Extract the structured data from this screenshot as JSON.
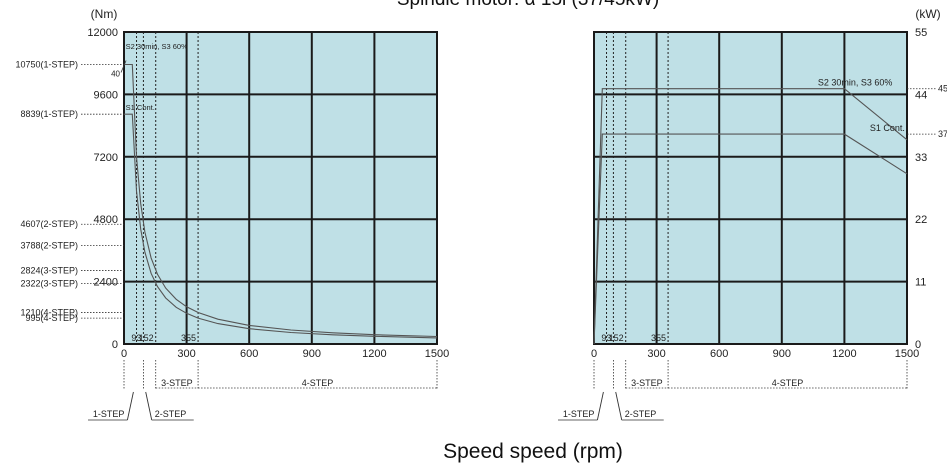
{
  "title": "Spindle motor: α 15i (37/45kW)",
  "x_axis_title": "Speed speed (rpm)",
  "colors": {
    "plot_bg": "#bfe0e6",
    "grid": "#1a1a1a",
    "curve": "#555555",
    "guide": "#333333"
  },
  "chart_data": [
    {
      "type": "line",
      "name": "torque",
      "ylabel": "(Nm)",
      "xlim": [
        0,
        1500
      ],
      "ylim": [
        0,
        12000
      ],
      "xticks": [
        0,
        300,
        600,
        900,
        1200,
        1500
      ],
      "yticks": [
        0,
        2400,
        4800,
        7200,
        9600,
        12000
      ],
      "grid": true,
      "series": [
        {
          "label": "S2 30min, S3 60%",
          "x": [
            0,
            40,
            60,
            80,
            100,
            130,
            160,
            200,
            250,
            300,
            355,
            450,
            600,
            800,
            1000,
            1200,
            1500
          ],
          "y": [
            10750,
            10750,
            7200,
            5400,
            4300,
            3310,
            2690,
            2150,
            1720,
            1430,
            1210,
            955,
            717,
            538,
            430,
            358,
            287
          ]
        },
        {
          "label": "S1 Cont.",
          "x": [
            0,
            40,
            60,
            80,
            100,
            130,
            160,
            200,
            250,
            300,
            355,
            450,
            600,
            800,
            1000,
            1200,
            1500
          ],
          "y": [
            8839,
            8839,
            5890,
            4420,
            3530,
            2720,
            2210,
            1770,
            1410,
            1180,
            995,
            785,
            589,
            442,
            353,
            295,
            236
          ]
        }
      ],
      "annotations": [
        "S2 30min, S3 60%",
        "S1 Cont."
      ],
      "corner_label": "40",
      "left_callouts": [
        {
          "text": "10750(1-STEP)",
          "y": 10750
        },
        {
          "text": "8839(1-STEP)",
          "y": 8839
        },
        {
          "text": "4607(2-STEP)",
          "y": 4607
        },
        {
          "text": "3788(2-STEP)",
          "y": 3788
        },
        {
          "text": "2824(3-STEP)",
          "y": 2824
        },
        {
          "text": "2322(3-STEP)",
          "y": 2322
        },
        {
          "text": "1210(4-STEP)",
          "y": 1210
        },
        {
          "text": "995(4-STEP)",
          "y": 995
        }
      ],
      "step_speeds": [
        {
          "text": "93",
          "x": 93
        },
        {
          "text": "152",
          "x": 152
        },
        {
          "text": "355",
          "x": 355
        }
      ]
    },
    {
      "type": "line",
      "name": "power",
      "ylabel": "(kW)",
      "xlim": [
        0,
        1500
      ],
      "ylim": [
        0,
        55
      ],
      "xticks": [
        0,
        300,
        600,
        900,
        1200,
        1500
      ],
      "yticks": [
        0,
        11,
        22,
        33,
        44,
        55
      ],
      "grid": true,
      "series": [
        {
          "label": "S2 30min, S3 60%",
          "x": [
            0,
            40,
            1200,
            1500
          ],
          "y": [
            0,
            45,
            45,
            36
          ]
        },
        {
          "label": "S1 Cont.",
          "x": [
            0,
            40,
            1200,
            1500
          ],
          "y": [
            0,
            37,
            37,
            30
          ]
        }
      ],
      "annotations": [
        "S2 30min, S3 60%",
        "S1 Cont."
      ],
      "right_callouts": [
        {
          "text": "45",
          "y": 45
        },
        {
          "text": "37",
          "y": 37
        }
      ],
      "step_speeds": [
        {
          "text": "93",
          "x": 93
        },
        {
          "text": "152",
          "x": 152
        },
        {
          "text": "355",
          "x": 355
        }
      ]
    }
  ],
  "steps": {
    "one": "1-STEP",
    "two": "2-STEP",
    "three": "3-STEP",
    "four": "4-STEP"
  }
}
